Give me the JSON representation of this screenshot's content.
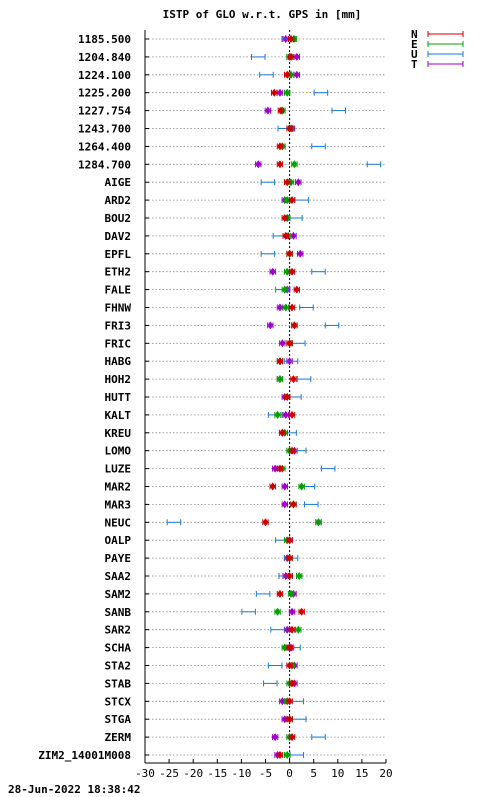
{
  "chart_data": {
    "type": "scatter",
    "title": "ISTP of GLO w.r.t. GPS in [mm]",
    "xlim": [
      -30,
      20
    ],
    "xticks": [
      -30,
      -25,
      -20,
      -15,
      -10,
      -5,
      0,
      5,
      10,
      15,
      20
    ],
    "grid": "horizontal dotted per station",
    "zero_line": "dashed vertical at x=0",
    "legend": "top-right",
    "series": [
      {
        "name": "N",
        "color": "#cc0000"
      },
      {
        "name": "E",
        "color": "#00a000"
      },
      {
        "name": "U",
        "color": "#1e78d2"
      },
      {
        "name": "T",
        "color": "#a000c8"
      }
    ],
    "categories": [
      "1185.500",
      "1204.840",
      "1224.100",
      "1225.200",
      "1227.754",
      "1243.700",
      "1264.400",
      "1284.700",
      "AIGE",
      "ARD2",
      "BOU2",
      "DAV2",
      "EPFL",
      "ETH2",
      "FALE",
      "FHNW",
      "FRI3",
      "FRIC",
      "HABG",
      "HOH2",
      "HUTT",
      "KALT",
      "KREU",
      "LOMO",
      "LUZE",
      "MAR2",
      "MAR3",
      "NEUC",
      "OALP",
      "PAYE",
      "SAA2",
      "SAM2",
      "SANB",
      "SAR2",
      "SCHA",
      "STA2",
      "STAB",
      "STCX",
      "STGA",
      "ZERM",
      "ZIM2_14001M008"
    ],
    "values": [
      [
        0.3,
        0.9,
        -0.2,
        -0.8
      ],
      [
        0.3,
        0.0,
        -6.5,
        1.5
      ],
      [
        -0.5,
        0.3,
        -4.8,
        1.5
      ],
      [
        -3.2,
        -0.5,
        6.5,
        -2.0
      ],
      [
        -1.8,
        -1.5,
        10.2,
        -4.5
      ],
      [
        0.0,
        0.3,
        -1.0,
        0.5
      ],
      [
        -2.0,
        -1.5,
        6.0,
        -1.5
      ],
      [
        -2.0,
        1.0,
        17.5,
        -6.5
      ],
      [
        -0.5,
        0.3,
        -4.5,
        1.8
      ],
      [
        0.5,
        -0.5,
        2.5,
        -1.0
      ],
      [
        -1.0,
        -0.5,
        1.2,
        -0.5
      ],
      [
        -0.8,
        -0.3,
        -2.0,
        0.8
      ],
      [
        0.0,
        0.0,
        -4.5,
        2.2
      ],
      [
        0.5,
        -0.5,
        6.0,
        -3.5
      ],
      [
        1.5,
        -1.0,
        -1.5,
        -0.5
      ],
      [
        0.5,
        -0.8,
        3.5,
        -2.0
      ],
      [
        1.0,
        1.0,
        8.8,
        -4.0
      ],
      [
        0.0,
        0.0,
        1.8,
        -1.5
      ],
      [
        -2.0,
        -2.0,
        0.3,
        0.0
      ],
      [
        0.8,
        -2.0,
        3.0,
        -2.0
      ],
      [
        -0.5,
        -0.5,
        1.0,
        -1.0
      ],
      [
        0.5,
        -2.5,
        -3.0,
        -0.8
      ],
      [
        -1.5,
        -1.0,
        0.0,
        -1.5
      ],
      [
        0.5,
        0.0,
        2.0,
        1.0
      ],
      [
        -2.0,
        -1.5,
        8.0,
        -3.0
      ],
      [
        -3.5,
        2.5,
        3.8,
        -1.0
      ],
      [
        0.8,
        0.8,
        4.5,
        -1.0
      ],
      [
        -5.0,
        6.0,
        -24.0,
        6.0
      ],
      [
        0.0,
        -0.5,
        -1.5,
        0.0
      ],
      [
        0.0,
        0.0,
        0.3,
        -0.5
      ],
      [
        0.0,
        2.0,
        -0.8,
        -0.8
      ],
      [
        -2.0,
        0.3,
        -5.5,
        0.8
      ],
      [
        2.5,
        -2.5,
        -8.5,
        0.5
      ],
      [
        0.5,
        1.8,
        -2.5,
        -0.5
      ],
      [
        0.0,
        -1.0,
        0.8,
        0.3
      ],
      [
        0.0,
        0.5,
        -3.0,
        1.0
      ],
      [
        0.5,
        0.0,
        -4.0,
        1.0
      ],
      [
        0.0,
        -0.5,
        1.5,
        -1.5
      ],
      [
        0.0,
        0.0,
        2.0,
        -1.0
      ],
      [
        0.5,
        0.0,
        6.0,
        -3.0
      ],
      [
        -2.0,
        -0.5,
        1.5,
        -2.5
      ]
    ]
  },
  "footer": {
    "timestamp": "28-Jun-2022 18:38:42"
  }
}
